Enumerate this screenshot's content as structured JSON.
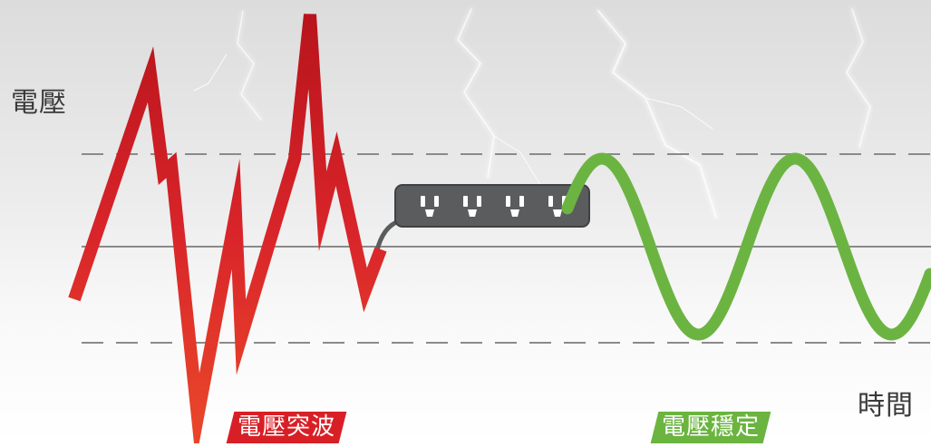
{
  "labels": {
    "voltage_axis": "電壓",
    "time_axis": "時間",
    "surge_tag": "電壓突波",
    "stable_tag": "電壓穩定"
  },
  "colors": {
    "surge_wave": "#d21f26",
    "stable_wave": "#6cb442",
    "surge_tag_bg": "#d91f26",
    "stable_tag_bg": "#6ab43f",
    "power_strip": "#5a5c5e",
    "reference_line": "#8a8a8a"
  },
  "icons": {
    "power_strip": "power-strip-icon",
    "outlet": "outlet-icon",
    "lightning": "lightning-bolt-icon"
  },
  "power_strip": {
    "outlet_count": 4
  }
}
